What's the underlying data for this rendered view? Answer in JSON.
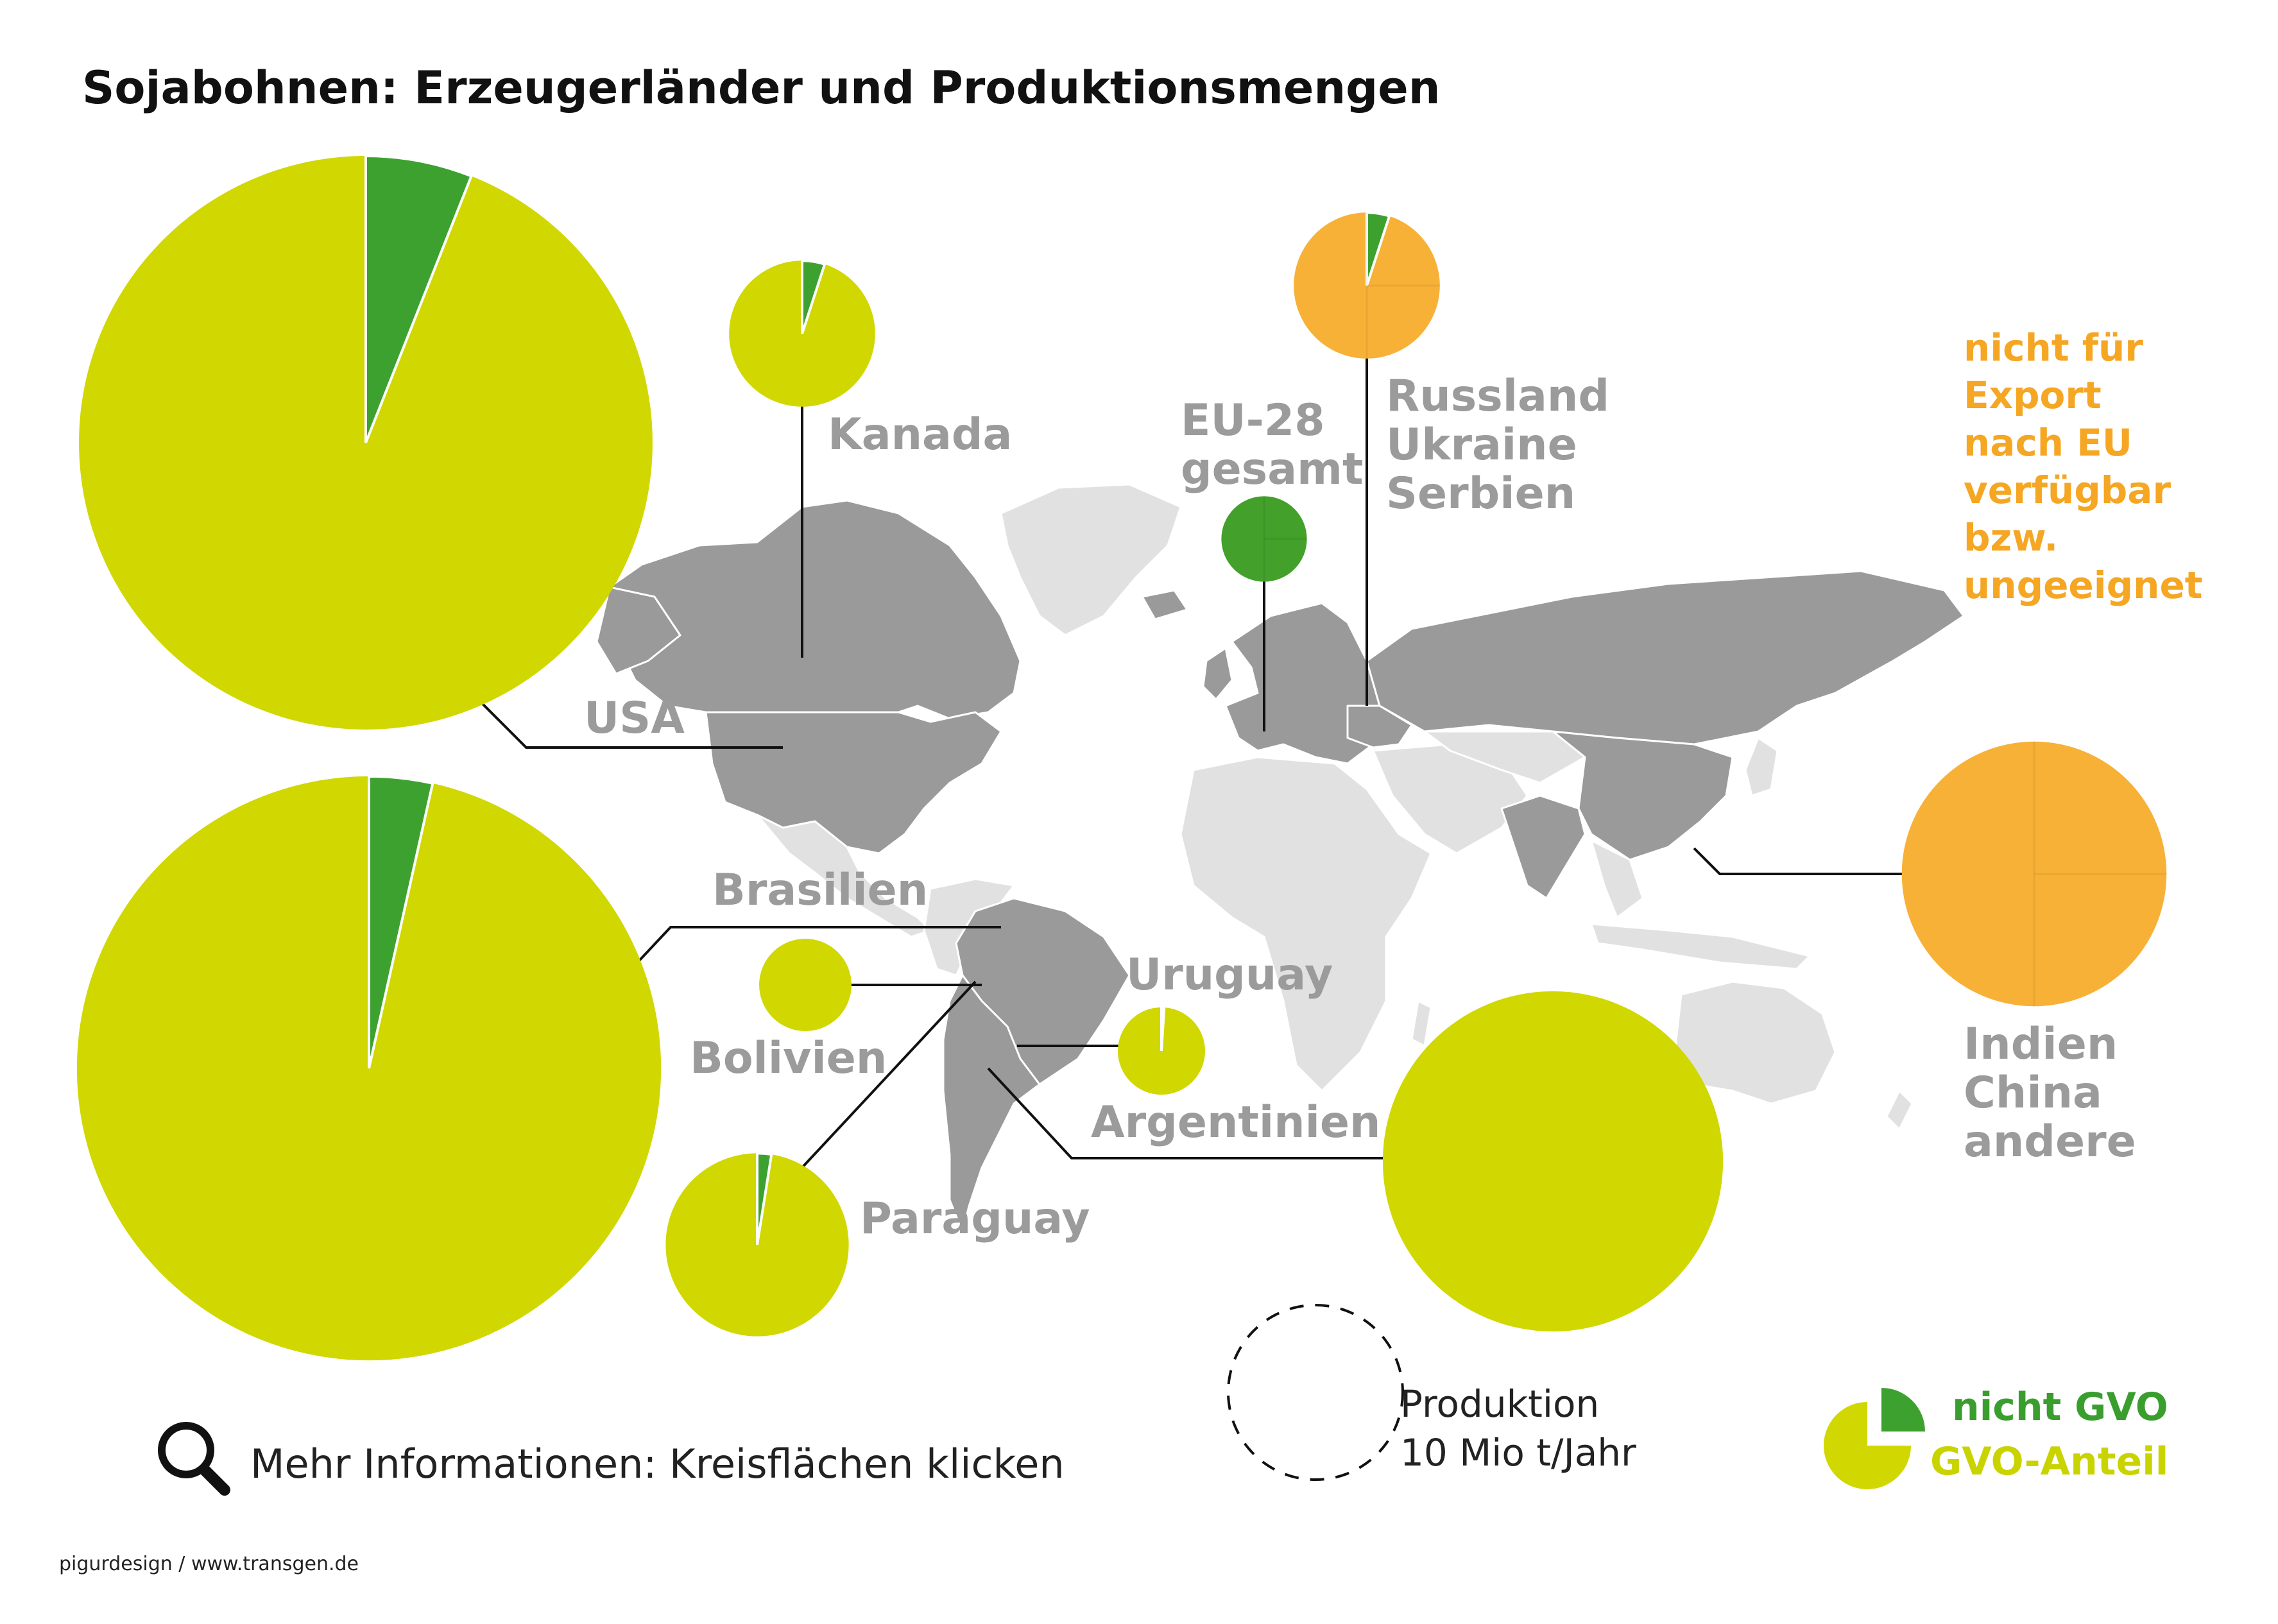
{
  "title": "Sojabohnen: Erzeugerländer und Produktionsmengen",
  "colors": {
    "gvo": "#d1d700",
    "non_gvo": "#3da12f",
    "eu": "#43a02b",
    "unavailable": "#f7b137",
    "map_producer": "#9a9a9a",
    "map_other": "#e1e1e1",
    "leader_line": "#111111"
  },
  "labels": {
    "usa": "USA",
    "kanada": "Kanada",
    "eu_line1": "EU-28",
    "eu_line2": "gesamt",
    "russland": "Russland",
    "ukraine": "Ukraine",
    "serbien": "Serbien",
    "brasilien": "Brasilien",
    "bolivien": "Bolivien",
    "uruguay": "Uruguay",
    "paraguay": "Paraguay",
    "argentinien": "Argentinien",
    "indien": "Indien",
    "china": "China",
    "andere": "andere"
  },
  "note_lines": [
    "nicht für",
    "Export",
    "nach EU",
    "verfügbar",
    "bzw.",
    "ungeeignet"
  ],
  "size_legend": {
    "line1": "Produktion",
    "line2": "10 Mio t/Jahr",
    "reference_mio_t": 10
  },
  "color_legend": {
    "non_gvo": "nicht GVO",
    "gvo": "GVO-Anteil"
  },
  "info": "Mehr Informationen: Kreisflächen klicken",
  "info_icon": "magnifier-icon",
  "credit": "pigurdesign / www.transgen.de",
  "chart_data": {
    "type": "pie",
    "unit": "Mio t/Jahr",
    "series": [
      {
        "name": "USA",
        "production_mio_t": 108,
        "non_gvo_share": 0.06,
        "kind": "gvo"
      },
      {
        "name": "Brasilien",
        "production_mio_t": 112,
        "non_gvo_share": 0.035,
        "kind": "gvo"
      },
      {
        "name": "Argentinien",
        "production_mio_t": 38,
        "non_gvo_share": 0.0,
        "kind": "gvo"
      },
      {
        "name": "Kanada",
        "production_mio_t": 7,
        "non_gvo_share": 0.05,
        "kind": "gvo"
      },
      {
        "name": "Bolivien",
        "production_mio_t": 2.8,
        "non_gvo_share": 0.0,
        "kind": "gvo"
      },
      {
        "name": "Paraguay",
        "production_mio_t": 11,
        "non_gvo_share": 0.025,
        "kind": "gvo"
      },
      {
        "name": "Uruguay",
        "production_mio_t": 2.5,
        "non_gvo_share": 0.01,
        "kind": "gvo"
      },
      {
        "name": "EU-28 gesamt",
        "production_mio_t": 2.4,
        "non_gvo_share": 1.0,
        "kind": "eu"
      },
      {
        "name": "Russland Ukraine Serbien",
        "production_mio_t": 7,
        "non_gvo_share": 0.05,
        "kind": "unavailable"
      },
      {
        "name": "Indien China andere",
        "production_mio_t": 23,
        "non_gvo_share": 0.0,
        "kind": "unavailable"
      }
    ]
  }
}
